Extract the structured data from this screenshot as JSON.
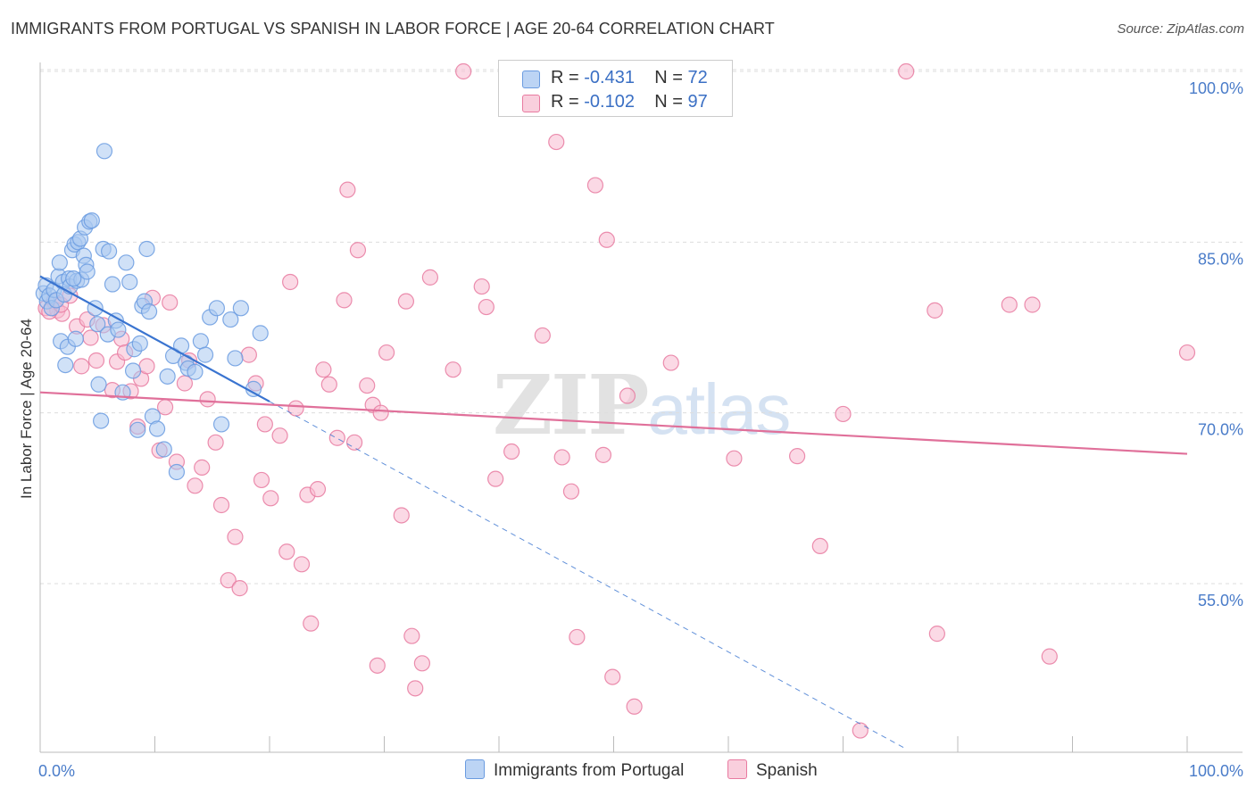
{
  "header": {
    "title": "IMMIGRANTS FROM PORTUGAL VS SPANISH IN LABOR FORCE | AGE 20-64 CORRELATION CHART",
    "source": "Source: ZipAtlas.com"
  },
  "watermark": {
    "zip": "ZIP",
    "atlas": "atlas"
  },
  "legend": {
    "rows": [
      {
        "r_label": "R = ",
        "r_value": "-0.431",
        "n_label": "N = ",
        "n_value": "72",
        "color": "#a9c8f0"
      },
      {
        "r_label": "R = ",
        "r_value": "-0.102",
        "n_label": "N = ",
        "n_value": "97",
        "color": "#f7b9cf"
      }
    ]
  },
  "bottom_legend": {
    "series1": "Immigrants from Portugal",
    "series2": "Spanish"
  },
  "chart_data": {
    "type": "scatter",
    "title": "IMMIGRANTS FROM PORTUGAL VS SPANISH IN LABOR FORCE | AGE 20-64 CORRELATION CHART",
    "xlabel": "",
    "ylabel": "In Labor Force | Age 20-64",
    "xlim": [
      0,
      100
    ],
    "ylim": [
      40,
      101.5
    ],
    "x_tick_labels": [
      "0.0%",
      "100.0%"
    ],
    "y_ticks": [
      55,
      70,
      85,
      100
    ],
    "y_tick_labels": [
      "55.0%",
      "70.0%",
      "85.0%",
      "100.0%"
    ],
    "grid": true,
    "series": [
      {
        "name": "Immigrants from Portugal",
        "color": "#6a9be0",
        "fill": "#a9c8f0",
        "trend": {
          "x0": 0,
          "y0": 82.0,
          "x1": 20,
          "y1": 71.0,
          "dash_to_x": 75.5
        },
        "points": [
          [
            0.3,
            80.5
          ],
          [
            0.5,
            81.2
          ],
          [
            0.6,
            79.8
          ],
          [
            0.8,
            80.3
          ],
          [
            1.0,
            79.2
          ],
          [
            1.2,
            80.8
          ],
          [
            1.4,
            79.9
          ],
          [
            1.6,
            82.0
          ],
          [
            1.7,
            83.2
          ],
          [
            1.8,
            76.3
          ],
          [
            2.0,
            81.5
          ],
          [
            2.1,
            80.4
          ],
          [
            2.2,
            74.2
          ],
          [
            2.4,
            75.8
          ],
          [
            2.5,
            81.8
          ],
          [
            2.6,
            81.1
          ],
          [
            2.8,
            84.3
          ],
          [
            3.0,
            84.8
          ],
          [
            3.1,
            76.5
          ],
          [
            3.2,
            81.6
          ],
          [
            3.3,
            85.0
          ],
          [
            3.5,
            85.3
          ],
          [
            3.6,
            81.7
          ],
          [
            3.8,
            83.8
          ],
          [
            3.9,
            86.3
          ],
          [
            4.0,
            83.0
          ],
          [
            4.1,
            82.4
          ],
          [
            4.3,
            86.8
          ],
          [
            4.5,
            86.9
          ],
          [
            4.8,
            79.2
          ],
          [
            5.0,
            77.8
          ],
          [
            5.1,
            72.5
          ],
          [
            5.3,
            69.3
          ],
          [
            5.6,
            93.0
          ],
          [
            5.9,
            76.9
          ],
          [
            6.3,
            81.3
          ],
          [
            6.6,
            78.1
          ],
          [
            6.8,
            77.3
          ],
          [
            7.2,
            71.8
          ],
          [
            7.5,
            83.2
          ],
          [
            7.8,
            81.5
          ],
          [
            8.1,
            73.7
          ],
          [
            8.2,
            75.6
          ],
          [
            8.5,
            68.5
          ],
          [
            8.7,
            76.1
          ],
          [
            8.9,
            79.4
          ],
          [
            9.1,
            79.8
          ],
          [
            9.3,
            84.4
          ],
          [
            9.5,
            78.9
          ],
          [
            9.8,
            69.7
          ],
          [
            10.2,
            68.6
          ],
          [
            10.8,
            66.8
          ],
          [
            11.1,
            73.2
          ],
          [
            11.6,
            75.0
          ],
          [
            11.9,
            64.8
          ],
          [
            12.3,
            75.9
          ],
          [
            12.7,
            74.4
          ],
          [
            12.9,
            73.9
          ],
          [
            13.5,
            73.6
          ],
          [
            14.0,
            76.3
          ],
          [
            14.4,
            75.1
          ],
          [
            14.8,
            78.4
          ],
          [
            15.4,
            79.2
          ],
          [
            15.8,
            69.0
          ],
          [
            16.6,
            78.2
          ],
          [
            17.0,
            74.8
          ],
          [
            17.5,
            79.2
          ],
          [
            18.6,
            72.1
          ],
          [
            19.2,
            77.0
          ],
          [
            5.5,
            84.4
          ],
          [
            6.0,
            84.2
          ],
          [
            2.9,
            81.8
          ]
        ]
      },
      {
        "name": "Spanish",
        "color": "#e87aa0",
        "fill": "#f7b9cf",
        "trend": {
          "x0": 0,
          "y0": 71.8,
          "x1": 100,
          "y1": 66.4
        },
        "points": [
          [
            0.5,
            79.2
          ],
          [
            1.2,
            79.8
          ],
          [
            1.5,
            79.0
          ],
          [
            1.9,
            78.7
          ],
          [
            3.2,
            77.6
          ],
          [
            3.6,
            74.1
          ],
          [
            4.4,
            76.6
          ],
          [
            4.9,
            74.6
          ],
          [
            5.5,
            77.7
          ],
          [
            6.3,
            72.0
          ],
          [
            6.7,
            74.5
          ],
          [
            7.1,
            76.5
          ],
          [
            7.4,
            75.3
          ],
          [
            7.9,
            71.9
          ],
          [
            8.5,
            68.8
          ],
          [
            8.8,
            73.0
          ],
          [
            9.3,
            74.1
          ],
          [
            9.8,
            80.1
          ],
          [
            10.4,
            66.7
          ],
          [
            10.9,
            70.5
          ],
          [
            11.3,
            79.7
          ],
          [
            11.9,
            65.7
          ],
          [
            12.6,
            72.6
          ],
          [
            13.0,
            74.6
          ],
          [
            13.5,
            63.6
          ],
          [
            14.1,
            65.2
          ],
          [
            14.6,
            71.2
          ],
          [
            15.3,
            67.4
          ],
          [
            15.8,
            61.9
          ],
          [
            16.4,
            55.3
          ],
          [
            17.0,
            59.1
          ],
          [
            17.4,
            54.6
          ],
          [
            18.2,
            75.1
          ],
          [
            18.8,
            72.6
          ],
          [
            19.3,
            64.1
          ],
          [
            19.6,
            69.0
          ],
          [
            20.1,
            62.5
          ],
          [
            20.9,
            68.0
          ],
          [
            21.5,
            57.8
          ],
          [
            21.8,
            81.5
          ],
          [
            22.3,
            70.4
          ],
          [
            22.8,
            56.7
          ],
          [
            23.3,
            62.8
          ],
          [
            23.6,
            51.5
          ],
          [
            24.2,
            63.3
          ],
          [
            24.7,
            73.8
          ],
          [
            25.2,
            72.5
          ],
          [
            25.9,
            67.8
          ],
          [
            26.5,
            79.9
          ],
          [
            26.8,
            89.6
          ],
          [
            27.4,
            67.4
          ],
          [
            27.7,
            84.3
          ],
          [
            28.5,
            72.4
          ],
          [
            29.0,
            70.7
          ],
          [
            29.4,
            47.8
          ],
          [
            29.7,
            70.0
          ],
          [
            30.2,
            75.3
          ],
          [
            31.5,
            61.0
          ],
          [
            31.9,
            79.8
          ],
          [
            32.4,
            50.4
          ],
          [
            32.7,
            45.8
          ],
          [
            33.3,
            48.0
          ],
          [
            34.0,
            81.9
          ],
          [
            36.0,
            73.8
          ],
          [
            36.9,
            100.0
          ],
          [
            38.5,
            81.1
          ],
          [
            38.9,
            79.3
          ],
          [
            39.7,
            64.2
          ],
          [
            41.1,
            66.6
          ],
          [
            43.8,
            76.8
          ],
          [
            45.0,
            93.8
          ],
          [
            45.5,
            66.1
          ],
          [
            46.3,
            63.1
          ],
          [
            46.8,
            50.3
          ],
          [
            48.4,
            90.0
          ],
          [
            49.1,
            66.3
          ],
          [
            49.4,
            85.2
          ],
          [
            49.9,
            46.8
          ],
          [
            51.2,
            71.5
          ],
          [
            51.8,
            44.2
          ],
          [
            55.0,
            74.4
          ],
          [
            60.5,
            66.0
          ],
          [
            66.0,
            66.2
          ],
          [
            68.0,
            58.3
          ],
          [
            70.0,
            69.9
          ],
          [
            71.5,
            42.1
          ],
          [
            75.5,
            100.0
          ],
          [
            78.0,
            79.0
          ],
          [
            78.2,
            50.6
          ],
          [
            84.5,
            79.5
          ],
          [
            86.5,
            79.5
          ],
          [
            88.0,
            48.6
          ],
          [
            100.0,
            75.3
          ],
          [
            0.8,
            78.9
          ],
          [
            1.8,
            79.5
          ],
          [
            2.6,
            80.3
          ],
          [
            4.1,
            78.2
          ]
        ]
      }
    ]
  }
}
